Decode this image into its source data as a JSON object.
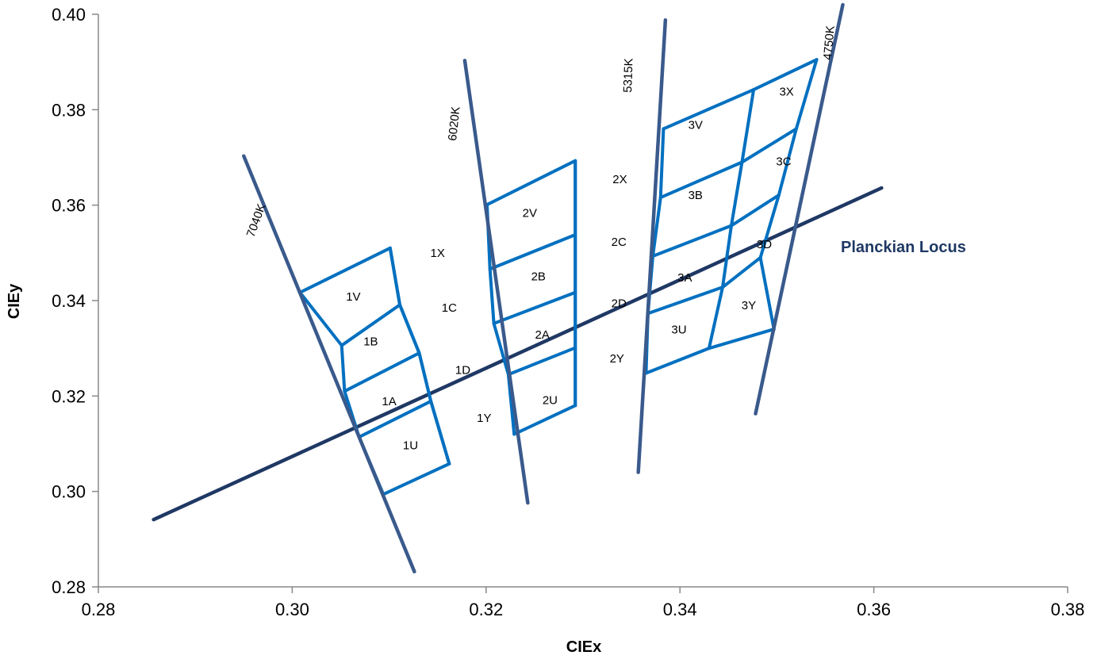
{
  "chart_data": {
    "type": "scatter",
    "title": "",
    "xlabel": "CIEx",
    "ylabel": "CIEy",
    "xlim": [
      0.28,
      0.38
    ],
    "ylim": [
      0.28,
      0.4
    ],
    "x_ticks": [
      "0.28",
      "0.30",
      "0.32",
      "0.34",
      "0.36",
      "0.38"
    ],
    "y_ticks": [
      "0.28",
      "0.30",
      "0.32",
      "0.34",
      "0.36",
      "0.38",
      "0.40"
    ],
    "x_tick_values": [
      0.28,
      0.3,
      0.32,
      0.34,
      0.36,
      0.38
    ],
    "y_tick_values": [
      0.28,
      0.3,
      0.32,
      0.34,
      0.36,
      0.38,
      0.4
    ],
    "grid": false,
    "colors": {
      "locus": "#1f3864",
      "cct_lines": "#3a5a8c",
      "bins": "#0070c0",
      "axes": "#888888"
    },
    "planckian_locus": {
      "name": "Planckian Locus",
      "points": [
        [
          0.2857,
          0.2941
        ],
        [
          0.3608,
          0.3636
        ]
      ]
    },
    "cct_lines": [
      {
        "label": "7040K",
        "points": [
          [
            0.295,
            0.3703
          ],
          [
            0.3126,
            0.2832
          ]
        ]
      },
      {
        "label": "6020K",
        "points": [
          [
            0.3178,
            0.3903
          ],
          [
            0.3243,
            0.2976
          ]
        ]
      },
      {
        "label": "5315K",
        "points": [
          [
            0.3385,
            0.3988
          ],
          [
            0.3357,
            0.304
          ]
        ]
      },
      {
        "label": "4750K",
        "points": [
          [
            0.3568,
            0.402
          ],
          [
            0.3478,
            0.3163
          ]
        ]
      }
    ],
    "bin_grid": {
      "columns": [
        {
          "name": "1",
          "left": [
            [
              0.3008,
              0.3417
            ],
            [
              0.3051,
              0.3306
            ],
            [
              0.3054,
              0.321
            ],
            [
              0.3069,
              0.3114
            ],
            [
              0.3094,
              0.2994
            ]
          ],
          "right": [
            [
              0.3101,
              0.351
            ],
            [
              0.3111,
              0.3391
            ],
            [
              0.3131,
              0.329
            ],
            [
              0.3143,
              0.3189
            ],
            [
              0.3162,
              0.3058
            ]
          ]
        },
        {
          "name": "2",
          "left": [
            [
              0.3201,
              0.3601
            ],
            [
              0.3204,
              0.3466
            ],
            [
              0.3208,
              0.3352
            ],
            [
              0.3223,
              0.3245
            ],
            [
              0.3229,
              0.312
            ]
          ],
          "right": [
            [
              0.3292,
              0.3693
            ],
            [
              0.3292,
              0.3538
            ],
            [
              0.3292,
              0.3417
            ],
            [
              0.3292,
              0.3301
            ],
            [
              0.3292,
              0.318
            ]
          ]
        },
        {
          "name": "3",
          "left": [
            [
              0.3383,
              0.376
            ],
            [
              0.338,
              0.3616
            ],
            [
              0.3372,
              0.3493
            ],
            [
              0.3367,
              0.3373
            ],
            [
              0.3365,
              0.3248
            ]
          ],
          "right": [
            [
              0.3541,
              0.3905
            ],
            [
              0.352,
              0.376
            ],
            [
              0.3502,
              0.3621
            ],
            [
              0.3483,
              0.349
            ],
            [
              0.343,
              0.33
            ]
          ]
        }
      ],
      "extra_points": {
        "col3_mid_top": [
          0.3476,
          0.3842
        ],
        "col3_mid_r1": [
          0.3464,
          0.369
        ],
        "col3_mid_r2": [
          0.3453,
          0.3557
        ],
        "col3_mid_r3": [
          0.3444,
          0.3428
        ],
        "col3_bottom_right": [
          0.3497,
          0.334
        ]
      },
      "labels": [
        {
          "text": "1V",
          "x": 0.3063,
          "y": 0.34
        },
        {
          "text": "1X",
          "x": 0.315,
          "y": 0.3491
        },
        {
          "text": "1B",
          "x": 0.3081,
          "y": 0.3306
        },
        {
          "text": "1C",
          "x": 0.3162,
          "y": 0.3377
        },
        {
          "text": "1A",
          "x": 0.31,
          "y": 0.3181
        },
        {
          "text": "1D",
          "x": 0.3176,
          "y": 0.3246
        },
        {
          "text": "1U",
          "x": 0.3122,
          "y": 0.3088
        },
        {
          "text": "1Y",
          "x": 0.3198,
          "y": 0.3146
        },
        {
          "text": "2V",
          "x": 0.3245,
          "y": 0.3575
        },
        {
          "text": "2X",
          "x": 0.3338,
          "y": 0.3646
        },
        {
          "text": "2B",
          "x": 0.3254,
          "y": 0.3442
        },
        {
          "text": "2C",
          "x": 0.3337,
          "y": 0.3515
        },
        {
          "text": "2A",
          "x": 0.3258,
          "y": 0.332
        },
        {
          "text": "2D",
          "x": 0.3337,
          "y": 0.3386
        },
        {
          "text": "2U",
          "x": 0.3266,
          "y": 0.3183
        },
        {
          "text": "2Y",
          "x": 0.3335,
          "y": 0.327
        },
        {
          "text": "3V",
          "x": 0.3416,
          "y": 0.376
        },
        {
          "text": "3X",
          "x": 0.351,
          "y": 0.383
        },
        {
          "text": "3B",
          "x": 0.3416,
          "y": 0.3613
        },
        {
          "text": "3C",
          "x": 0.3507,
          "y": 0.3683
        },
        {
          "text": "3A",
          "x": 0.3405,
          "y": 0.344
        },
        {
          "text": "3D",
          "x": 0.3487,
          "y": 0.351
        },
        {
          "text": "3U",
          "x": 0.3399,
          "y": 0.3331
        },
        {
          "text": "3Y",
          "x": 0.3471,
          "y": 0.3382
        }
      ]
    }
  }
}
